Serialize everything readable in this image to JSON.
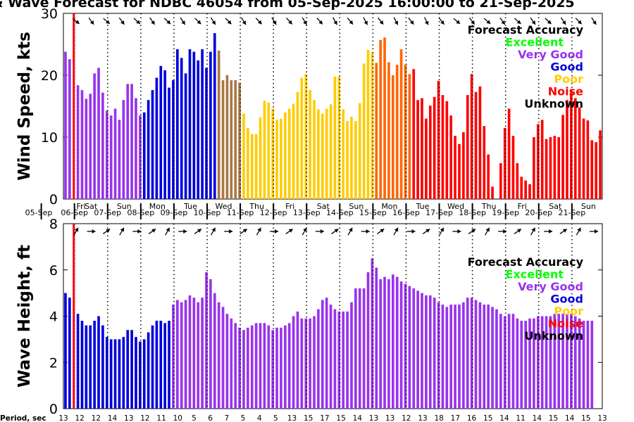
{
  "title": "& Wave Forecast for NDBC 46054 from 05-Sep-2025 16:00:00 to 21-Sep-2025",
  "period_label": "Period, sec",
  "colors": {
    "unknown": "#000000",
    "excellent": "#00ff00",
    "very_good": "#9933ee",
    "good": "#0000dd",
    "poor": "#ffcc00",
    "noise": "#ff0000",
    "medium": "#ff6600",
    "transition": "#aa7744"
  },
  "legend": {
    "title": "Forecast Accuracy",
    "items": [
      {
        "label": "Excellent",
        "color": "#00ff00"
      },
      {
        "label": "Very Good",
        "color": "#9933ee"
      },
      {
        "label": "Good",
        "color": "#0000dd"
      },
      {
        "label": "Poor",
        "color": "#ffcc00"
      },
      {
        "label": "Noise",
        "color": "#ff0000"
      },
      {
        "label": "Unknown",
        "color": "#000000"
      }
    ]
  },
  "days": [
    {
      "dow": "Fri",
      "date": "05-Sep"
    },
    {
      "dow": "Sat",
      "date": "06-Sep"
    },
    {
      "dow": "Sun",
      "date": "07-Sep"
    },
    {
      "dow": "Mon",
      "date": "08-Sep"
    },
    {
      "dow": "Tue",
      "date": "09-Sep"
    },
    {
      "dow": "Wed",
      "date": "10-Sep"
    },
    {
      "dow": "Thu",
      "date": "11-Sep"
    },
    {
      "dow": "Fri",
      "date": "12-Sep"
    },
    {
      "dow": "Sat",
      "date": "13-Sep"
    },
    {
      "dow": "Sun",
      "date": "14-Sep"
    },
    {
      "dow": "Mon",
      "date": "15-Sep"
    },
    {
      "dow": "Tue",
      "date": "16-Sep"
    },
    {
      "dow": "Wed",
      "date": "17-Sep"
    },
    {
      "dow": "Thu",
      "date": "18-Sep"
    },
    {
      "dow": "Fri",
      "date": "19-Sep"
    },
    {
      "dow": "Sat",
      "date": "20-Sep"
    },
    {
      "dow": "Sun",
      "date": "21-Sep"
    }
  ],
  "chart_data": [
    {
      "type": "bar",
      "title": "Wind Speed",
      "ylabel": "Wind Speed, kts",
      "ylim": [
        0,
        30
      ],
      "yticks": [
        0,
        10,
        20,
        30
      ],
      "values": [
        23.8,
        22.6,
        0,
        18.4,
        17.6,
        16.2,
        17.0,
        20.3,
        21.2,
        17.2,
        14.3,
        13.5,
        14.6,
        12.8,
        16.0,
        18.6,
        18.6,
        16.3,
        13.5,
        14.0,
        16.0,
        17.6,
        19.6,
        21.5,
        20.8,
        18.0,
        19.2,
        24.2,
        22.8,
        20.3,
        24.2,
        23.8,
        22.4,
        24.2,
        21.2,
        23.8,
        26.8,
        24.0,
        19.2,
        20.0,
        19.2,
        19.2,
        18.8,
        13.8,
        11.5,
        10.5,
        10.5,
        13.2,
        15.9,
        15.6,
        14.6,
        12.8,
        13.0,
        14.0,
        14.6,
        15.4,
        17.3,
        19.6,
        20.2,
        17.6,
        16.0,
        14.5,
        13.8,
        14.6,
        15.3,
        19.8,
        19.8,
        14.5,
        12.6,
        13.3,
        12.6,
        15.5,
        21.9,
        24.1,
        23.7,
        22.0,
        25.7,
        26.1,
        22.1,
        20.0,
        21.7,
        24.2,
        21.7,
        20.2,
        21.0,
        16.0,
        16.3,
        13.0,
        15.1,
        16.5,
        19.1,
        16.8,
        15.8,
        13.5,
        10.2,
        8.9,
        10.8,
        16.8,
        20.2,
        17.3,
        18.2,
        11.8,
        7.2,
        2.0,
        0,
        5.8,
        11.5,
        14.6,
        10.2,
        5.8,
        3.6,
        3.0,
        2.4,
        10.0,
        12.1,
        12.8,
        9.7,
        10.0,
        10.2,
        10.0,
        13.6,
        16.0,
        17.2,
        16.3,
        14.8,
        13.0,
        12.7,
        9.5,
        9.2,
        11.1
      ],
      "categories_per_day": 8,
      "first_offset_hours": 16,
      "direction_arrows": "bearing in degrees; top row of each panel"
    },
    {
      "type": "bar",
      "title": "Wave Height",
      "ylabel": "Wave Height, ft",
      "ylim": [
        0,
        8
      ],
      "yticks": [
        0,
        2,
        4,
        6,
        8
      ],
      "values": [
        5.0,
        4.8,
        0,
        4.1,
        3.8,
        3.6,
        3.6,
        3.8,
        4.0,
        3.6,
        3.1,
        3.0,
        3.0,
        3.0,
        3.1,
        3.4,
        3.4,
        3.1,
        2.9,
        3.0,
        3.3,
        3.6,
        3.8,
        3.8,
        3.7,
        3.8,
        4.5,
        4.7,
        4.6,
        4.7,
        4.9,
        4.8,
        4.6,
        4.8,
        5.9,
        5.6,
        5.0,
        4.6,
        4.4,
        4.1,
        3.9,
        3.7,
        3.5,
        3.4,
        3.5,
        3.6,
        3.7,
        3.7,
        3.7,
        3.6,
        3.4,
        3.5,
        3.5,
        3.6,
        3.7,
        4.0,
        4.2,
        3.9,
        3.9,
        3.9,
        4.0,
        4.3,
        4.7,
        4.8,
        4.5,
        4.3,
        4.2,
        4.2,
        4.2,
        4.6,
        5.2,
        5.2,
        5.2,
        5.9,
        6.5,
        6.1,
        5.6,
        5.7,
        5.6,
        5.8,
        5.7,
        5.5,
        5.4,
        5.3,
        5.2,
        5.1,
        5.0,
        4.9,
        4.9,
        4.8,
        4.6,
        4.5,
        4.4,
        4.5,
        4.5,
        4.5,
        4.6,
        4.8,
        4.8,
        4.7,
        4.6,
        4.5,
        4.5,
        4.4,
        4.3,
        4.1,
        4.0,
        4.1,
        4.1,
        3.9,
        3.8,
        3.8,
        3.9,
        3.9,
        4.0,
        4.0,
        4.0,
        4.0,
        4.1,
        4.1,
        4.1,
        4.1,
        4.1,
        4.0,
        3.9,
        3.8,
        3.8,
        3.8
      ],
      "categories_per_day": 8,
      "first_offset_hours": 16
    }
  ],
  "period_values": [
    "13",
    "12",
    "12",
    "14",
    "13",
    "12",
    "11",
    "10",
    "5",
    "6",
    "7",
    "5",
    "4",
    "5",
    "13",
    "15",
    "17",
    "15",
    "14",
    "13",
    "13",
    "12",
    "13",
    "18",
    "17",
    "16",
    "15",
    "14",
    "11",
    "14",
    "15",
    "14",
    "15",
    "13"
  ]
}
